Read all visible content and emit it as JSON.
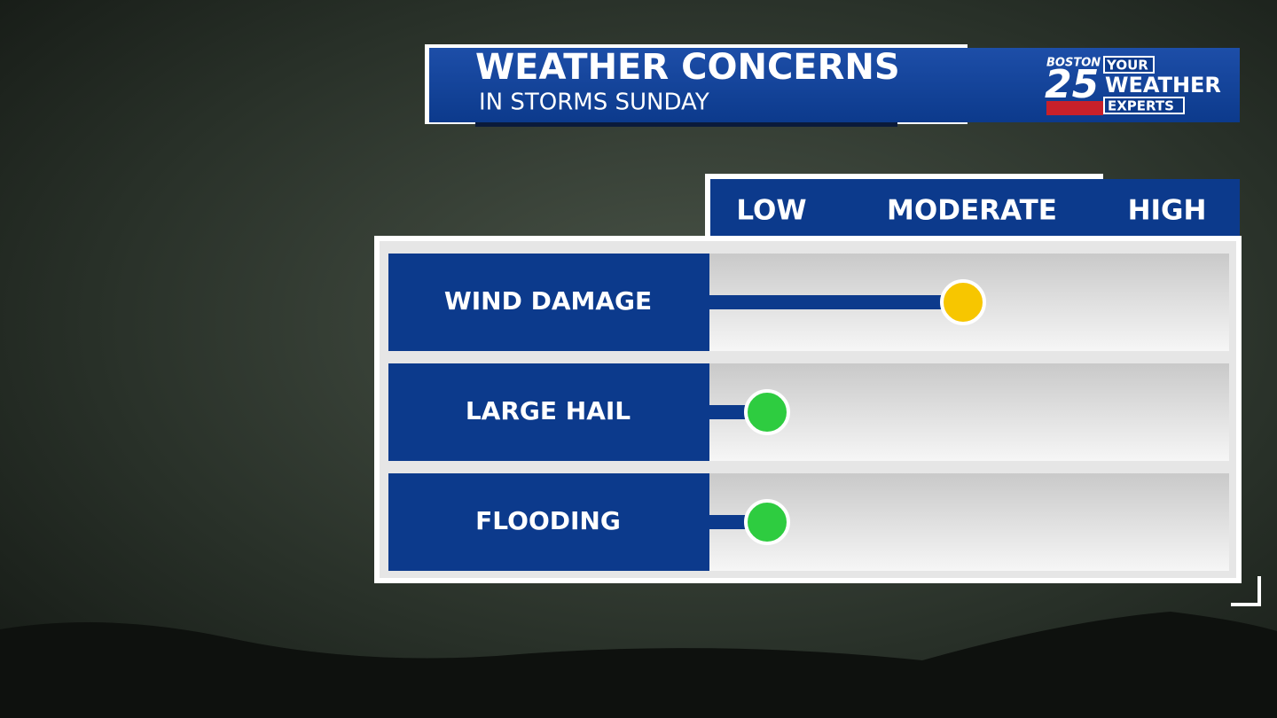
{
  "header": {
    "title": "WEATHER CONCERNS",
    "subtitle": "IN STORMS SUNDAY"
  },
  "logo": {
    "city": "BOSTON",
    "channel": "25",
    "line1": "YOUR",
    "line2": "WEATHER",
    "line3": "EXPERTS"
  },
  "levels": [
    "LOW",
    "MODERATE",
    "HIGH"
  ],
  "rows": [
    {
      "label": "WIND DAMAGE",
      "level": 1,
      "color": "#f7c600"
    },
    {
      "label": "LARGE HAIL",
      "level": 0,
      "color": "#2ecc40"
    },
    {
      "label": "FLOODING",
      "level": 0,
      "color": "#2ecc40"
    }
  ]
}
